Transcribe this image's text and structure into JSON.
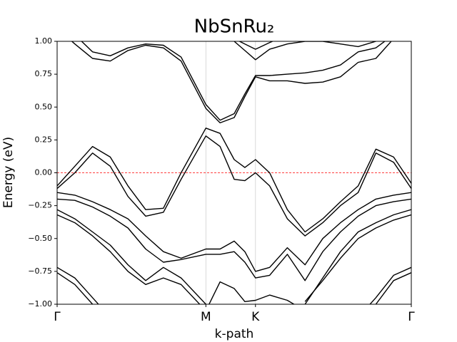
{
  "chart_data": {
    "type": "line",
    "title": "NbSnRu₂",
    "xlabel": "k-path",
    "ylabel": "Energy (eV)",
    "x": [
      0,
      0.05,
      0.1,
      0.15,
      0.2,
      0.25,
      0.3,
      0.35,
      0.42,
      0.46,
      0.5,
      0.53,
      0.56,
      0.6,
      0.65,
      0.7,
      0.75,
      0.8,
      0.85,
      0.9,
      0.95,
      1
    ],
    "xlim": [
      0,
      1
    ],
    "xticks": [
      {
        "value": 0,
        "label": "Γ"
      },
      {
        "value": 0.42,
        "label": "M"
      },
      {
        "value": 0.56,
        "label": "K"
      },
      {
        "value": 1,
        "label": "Γ"
      }
    ],
    "ylim": [
      -1,
      1
    ],
    "yticks": [
      {
        "value": -1,
        "label": "−1.00"
      },
      {
        "value": -0.75,
        "label": "−0.75"
      },
      {
        "value": -0.5,
        "label": "−0.50"
      },
      {
        "value": -0.25,
        "label": "−0.25"
      },
      {
        "value": 0,
        "label": "0.00"
      },
      {
        "value": 0.25,
        "label": "0.25"
      },
      {
        "value": 0.5,
        "label": "0.50"
      },
      {
        "value": 0.75,
        "label": "0.75"
      },
      {
        "value": 1,
        "label": "1.00"
      }
    ],
    "x_grid": true,
    "reference_line": {
      "value": 0,
      "color": "#ff0000"
    },
    "series": [
      {
        "color": "#000000",
        "values": [
          1.1,
          0.98,
          0.87,
          0.85,
          0.93,
          0.97,
          0.95,
          0.85,
          0.49,
          0.38,
          0.42,
          0.58,
          0.73,
          0.7,
          0.7,
          0.68,
          0.69,
          0.73,
          0.84,
          0.87,
          1.02,
          1.1
        ]
      },
      {
        "color": "#000000",
        "values": [
          1.15,
          1.05,
          0.92,
          0.89,
          0.95,
          0.98,
          0.97,
          0.88,
          0.52,
          0.4,
          0.45,
          0.6,
          0.74,
          0.74,
          0.75,
          0.76,
          0.78,
          0.82,
          0.92,
          0.95,
          1.05,
          1.15
        ]
      },
      {
        "color": "#000000",
        "values": [
          null,
          null,
          null,
          null,
          null,
          null,
          null,
          null,
          null,
          1.1,
          1.0,
          0.93,
          0.86,
          0.94,
          0.98,
          1.0,
          1.0,
          0.98,
          0.96,
          1.0,
          1.1,
          null
        ]
      },
      {
        "color": "#000000",
        "values": [
          null,
          null,
          null,
          null,
          null,
          null,
          null,
          null,
          null,
          null,
          1.02,
          0.98,
          0.94,
          0.99,
          1.05,
          null,
          null,
          null,
          null,
          null,
          null,
          null
        ]
      },
      {
        "color": "#000000",
        "values": [
          -0.1,
          0.05,
          0.2,
          0.12,
          -0.1,
          -0.28,
          -0.27,
          0.0,
          0.34,
          0.3,
          0.1,
          0.04,
          0.1,
          0.0,
          -0.28,
          -0.45,
          -0.35,
          -0.22,
          -0.1,
          0.18,
          0.12,
          -0.08
        ]
      },
      {
        "color": "#000000",
        "values": [
          -0.12,
          0.0,
          0.15,
          0.05,
          -0.18,
          -0.33,
          -0.3,
          -0.05,
          0.28,
          0.2,
          -0.05,
          -0.06,
          0.0,
          -0.1,
          -0.35,
          -0.48,
          -0.38,
          -0.25,
          -0.15,
          0.15,
          0.08,
          -0.12
        ]
      },
      {
        "color": "#000000",
        "values": [
          -0.15,
          -0.17,
          -0.22,
          -0.28,
          -0.35,
          -0.48,
          -0.6,
          -0.65,
          -0.58,
          -0.58,
          -0.52,
          -0.6,
          -0.75,
          -0.72,
          -0.57,
          -0.7,
          -0.5,
          -0.38,
          -0.28,
          -0.2,
          -0.17,
          -0.15
        ]
      },
      {
        "color": "#000000",
        "values": [
          -0.2,
          -0.21,
          -0.26,
          -0.33,
          -0.42,
          -0.58,
          -0.68,
          -0.66,
          -0.62,
          -0.62,
          -0.6,
          -0.68,
          -0.8,
          -0.78,
          -0.62,
          -0.82,
          -0.6,
          -0.45,
          -0.33,
          -0.25,
          -0.22,
          -0.2
        ]
      },
      {
        "color": "#000000",
        "values": [
          -0.28,
          -0.35,
          -0.45,
          -0.55,
          -0.7,
          -0.82,
          -0.72,
          -0.8,
          -1.0,
          -1.1,
          -1.1,
          -1.1,
          -1.1,
          -1.05,
          -1.05,
          -1.0,
          -0.8,
          -0.6,
          -0.45,
          -0.38,
          -0.32,
          -0.28
        ]
      },
      {
        "color": "#000000",
        "values": [
          -0.32,
          -0.38,
          -0.48,
          -0.6,
          -0.75,
          -0.85,
          -0.8,
          -0.85,
          -1.05,
          null,
          null,
          null,
          null,
          null,
          null,
          -0.98,
          -0.82,
          -0.65,
          -0.5,
          -0.42,
          -0.36,
          -0.32
        ]
      },
      {
        "color": "#000000",
        "values": [
          -0.72,
          -0.8,
          -0.95,
          -1.1,
          null,
          null,
          null,
          null,
          null,
          null,
          null,
          null,
          null,
          null,
          null,
          null,
          null,
          null,
          -1.1,
          -0.95,
          -0.78,
          -0.72
        ]
      },
      {
        "color": "#000000",
        "values": [
          -0.76,
          -0.85,
          -1.0,
          -1.15,
          null,
          null,
          null,
          null,
          null,
          null,
          null,
          null,
          null,
          null,
          null,
          null,
          null,
          null,
          -1.15,
          -1.0,
          -0.82,
          -0.76
        ]
      },
      {
        "color": "#000000",
        "values": [
          null,
          null,
          null,
          null,
          null,
          null,
          null,
          null,
          -1.05,
          -0.83,
          -0.88,
          -0.98,
          -0.97,
          -0.93,
          -0.97,
          -1.05,
          null,
          null,
          null,
          null,
          null,
          null
        ]
      }
    ]
  }
}
